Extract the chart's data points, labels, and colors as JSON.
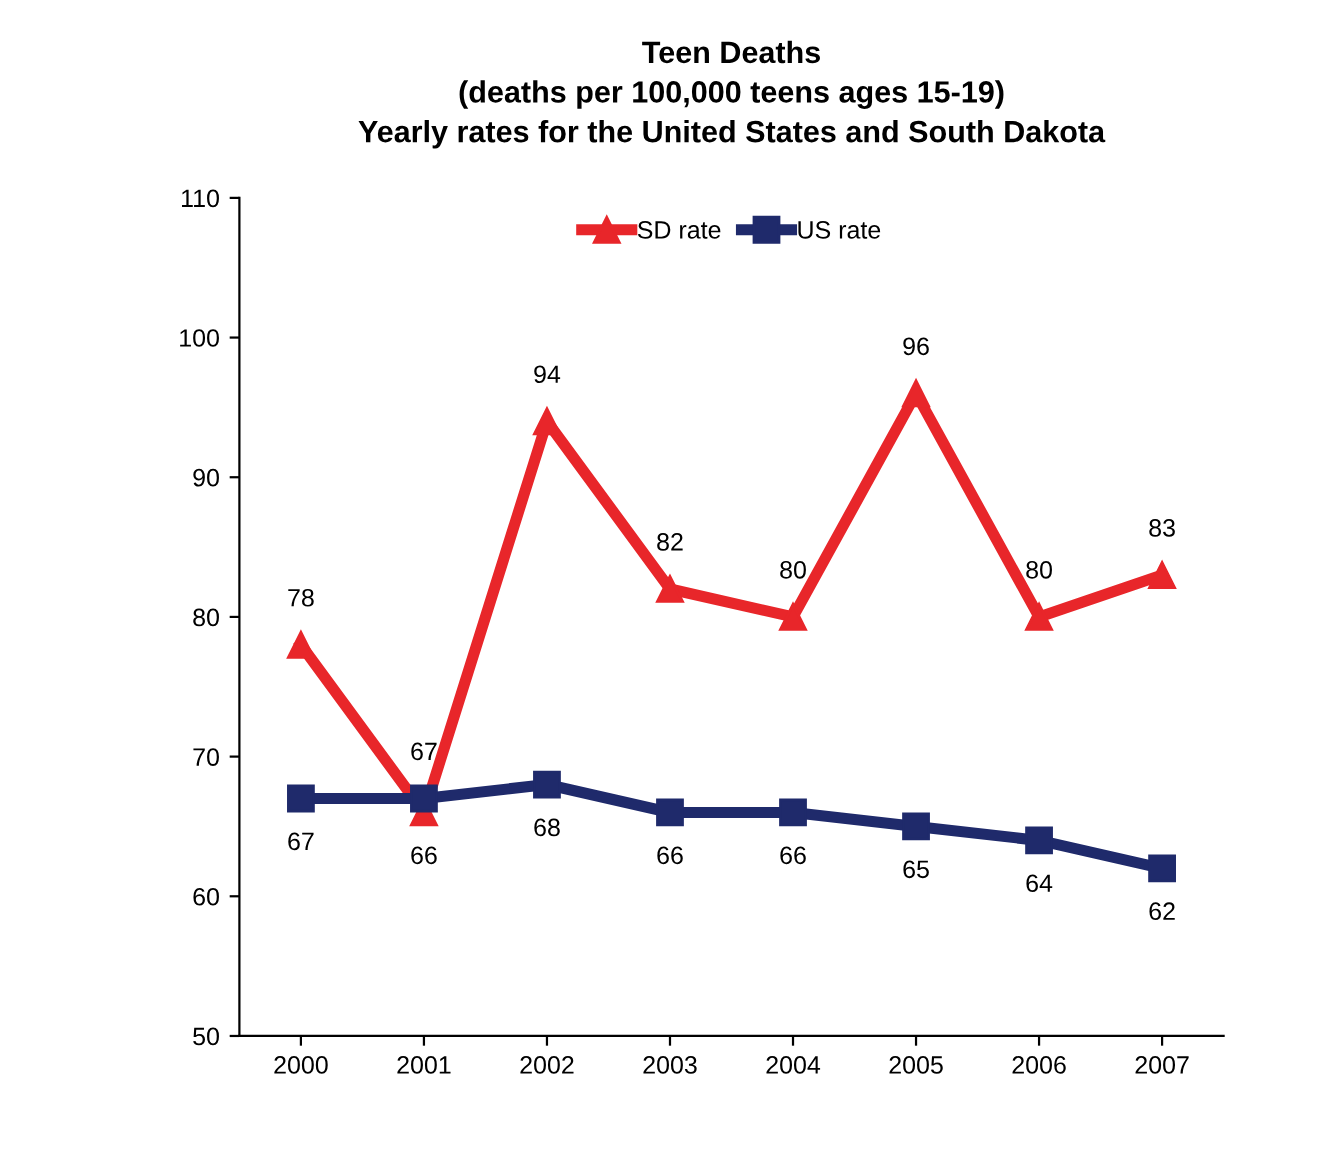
{
  "chart_data": {
    "type": "line",
    "title": "Teen Deaths\n(deaths per 100,000 teens ages 15-19)\nYearly rates for the United States and South Dakota",
    "categories": [
      "2000",
      "2001",
      "2002",
      "2003",
      "2004",
      "2005",
      "2006",
      "2007"
    ],
    "series": [
      {
        "name": "SD rate",
        "color": "#e8262a",
        "marker": "triangle",
        "values": [
          78,
          66,
          94,
          82,
          80,
          96,
          80,
          83
        ]
      },
      {
        "name": "US rate",
        "color": "#1f2a6b",
        "marker": "square",
        "values": [
          67,
          67,
          68,
          66,
          66,
          65,
          64,
          62
        ]
      }
    ],
    "ylim": [
      50,
      110
    ],
    "yticks": [
      50,
      60,
      70,
      80,
      90,
      100,
      110
    ],
    "grid": false,
    "legend": "top",
    "data_labels": true,
    "line_style": "solid"
  }
}
